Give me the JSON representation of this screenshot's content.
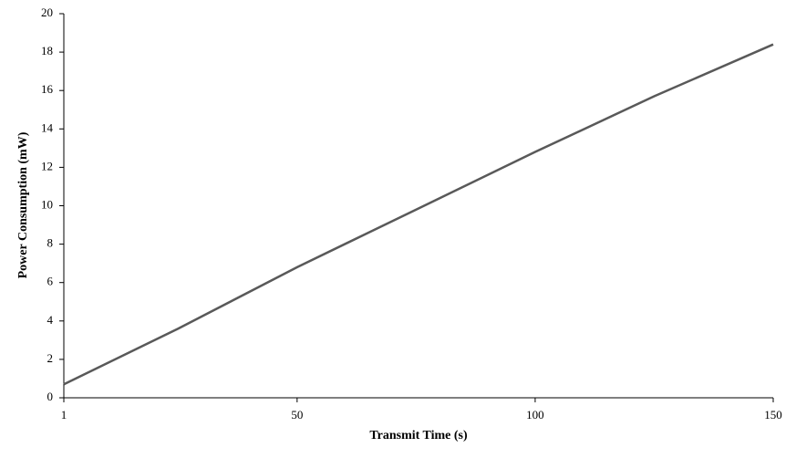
{
  "chart_data": {
    "type": "line",
    "x_label": "Transmit Time (s)",
    "y_label": "Power Consumption (mW)",
    "x": [
      1,
      25,
      50,
      75,
      100,
      125,
      150
    ],
    "series": [
      {
        "name": "Power Consumption",
        "color": "#595959",
        "values": [
          0.7,
          3.6,
          6.8,
          9.8,
          12.8,
          15.7,
          18.4
        ]
      }
    ],
    "xlim": [
      1,
      150
    ],
    "xticks": [
      1,
      50,
      100,
      150
    ],
    "ylim": [
      0,
      20
    ],
    "yticks": [
      0,
      2,
      4,
      6,
      8,
      10,
      12,
      14,
      16,
      18,
      20
    ],
    "grid": false
  }
}
